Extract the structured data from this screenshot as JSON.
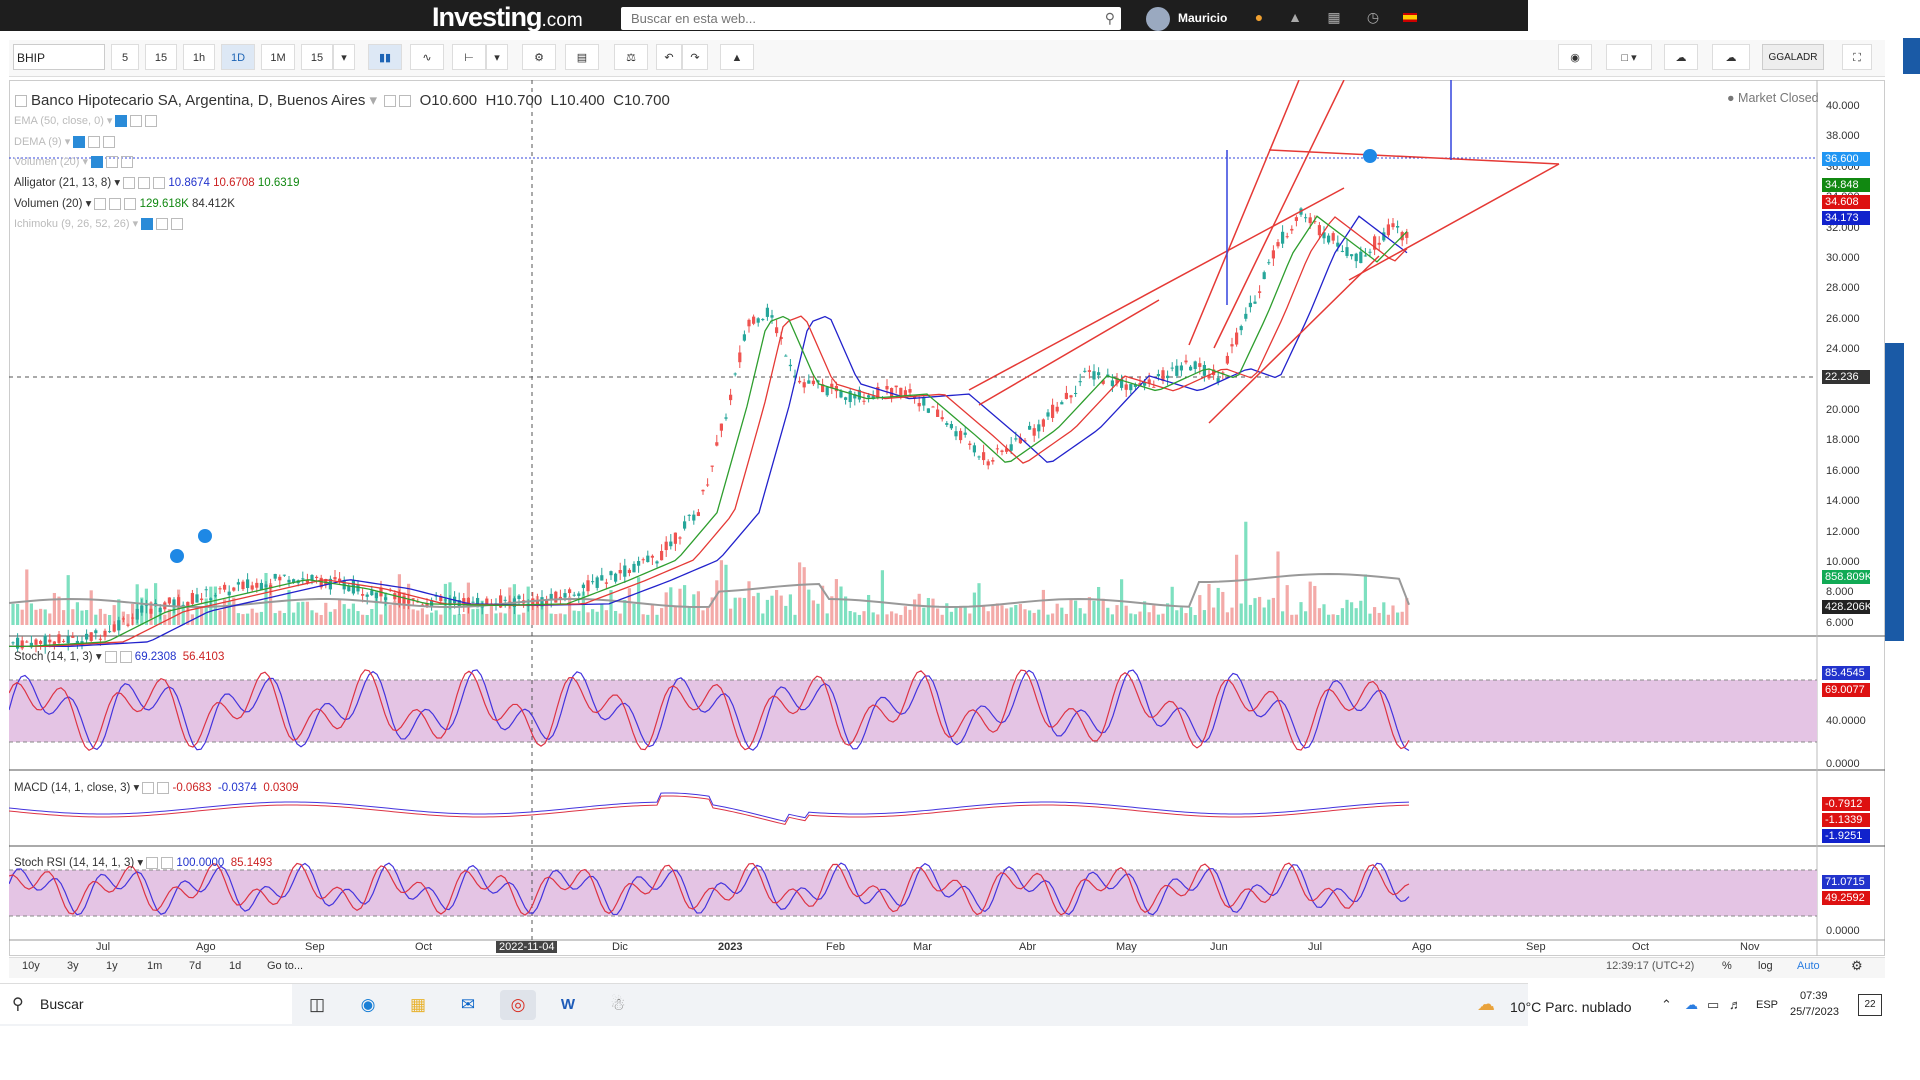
{
  "header": {
    "logo_main": "Investing",
    "logo_suffix": ".com",
    "search_placeholder": "Buscar en esta web...",
    "username": "Mauricio",
    "icons": [
      "search-icon",
      "avatar",
      "investing-pro-icon",
      "bell-icon",
      "portfolio-icon",
      "clock-icon",
      "spain-flag-icon"
    ]
  },
  "toolbar": {
    "symbol": "BHIP",
    "intervals": [
      "5",
      "15",
      "1h",
      "1D",
      "1M",
      "15"
    ],
    "active_interval": "1D",
    "ticker_select": "GGALADR"
  },
  "legend": {
    "title": "Banco Hipotecario SA, Argentina, D, Buenos Aires",
    "open": "O10.600",
    "high": "H10.700",
    "low": "L10.400",
    "close": "C10.700",
    "market_status": "Market Closed",
    "ema": "EMA (50, close, 0)",
    "dema": "DEMA (9)",
    "volume_hidden": "Volumen (20)",
    "alligator": "Alligator (21, 13, 8)",
    "alligator_v1": "10.8674",
    "alligator_v2": "10.6708",
    "alligator_v3": "10.6319",
    "volume": "Volumen (20)",
    "volume_v1": "129.618K",
    "volume_v2": "84.412K",
    "ichimoku": "Ichimoku (9, 26, 52, 26)",
    "stoch": "Stoch (14, 1, 3)",
    "stoch_v1": "69.2308",
    "stoch_v2": "56.4103",
    "macd": "MACD (14, 1, close, 3)",
    "macd_v1": "-0.0683",
    "macd_v2": "-0.0374",
    "macd_v3": "0.0309",
    "stochrsi": "Stoch RSI (14, 14, 1, 3)",
    "stochrsi_v1": "100.0000",
    "stochrsi_v2": "85.1493"
  },
  "price_axis": [
    "40.000",
    "38.000",
    "36.000",
    "34.000",
    "32.000",
    "30.000",
    "28.000",
    "26.000",
    "24.000",
    "22.000",
    "20.000",
    "18.000",
    "16.000",
    "14.000",
    "12.000",
    "10.000",
    "8.000",
    "6.000"
  ],
  "price_tags": {
    "last": "36.600",
    "green": "34.848",
    "red": "34.608",
    "blue": "34.173",
    "crosshair": "22.236",
    "vol1": "858.809K",
    "vol2": "428.206K"
  },
  "stoch_axis": [
    "85.4545",
    "69.0077",
    "40.0000",
    "0.0000"
  ],
  "macd_tags": [
    "-0.7912",
    "-1.1339",
    "-1.9251"
  ],
  "stochrsi_axis": [
    "71.0715",
    "49.2592",
    "0.0000"
  ],
  "x_axis": [
    "Jul",
    "Ago",
    "Sep",
    "Oct",
    "2022-11-04",
    "Dic",
    "2023",
    "Feb",
    "Mar",
    "Abr",
    "May",
    "Jun",
    "Jul",
    "Ago",
    "Sep",
    "Oct",
    "Nov"
  ],
  "bottom_bar": {
    "ranges": [
      "10y",
      "3y",
      "1y",
      "1m",
      "7d",
      "1d",
      "Go to..."
    ],
    "time": "12:39:17 (UTC+2)",
    "percent": "%",
    "log": "log",
    "auto": "Auto"
  },
  "taskbar": {
    "search_label": "Buscar",
    "weather": "10°C  Parc. nublado",
    "lang": "ESP",
    "time": "07:39",
    "date": "25/7/2023",
    "notif_count": "22"
  },
  "colors": {
    "up": "#26a69a",
    "down": "#ef5350",
    "vol_up": "#7ee0c0",
    "vol_down": "#f3aaa8",
    "ema": "#2222cc",
    "red_line": "#e53935",
    "green_line": "#2e9e2e",
    "stoch_band": "#e4c4e4",
    "accent": "#1a5aa6"
  }
}
